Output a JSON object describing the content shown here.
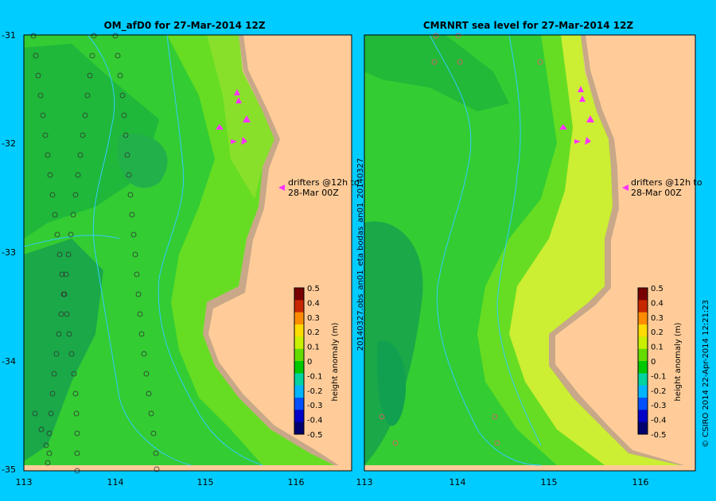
{
  "left_panel": {
    "title": "OM_afD0 for 27-Mar-2014 12Z",
    "y_ticks": [
      "-31",
      "-32",
      "-33",
      "-34",
      "-35"
    ],
    "x_ticks": [
      "113",
      "114",
      "115",
      "116"
    ],
    "drifter_note_line1": "drifters @12h to",
    "drifter_note_line2": "28-Mar 00Z"
  },
  "right_panel": {
    "title": "CMRNRT sea level  for 27-Mar-2014 12Z",
    "x_ticks": [
      "113",
      "114",
      "115",
      "116"
    ],
    "drifter_note_line1": "drifters @12h to",
    "drifter_note_line2": "28-Mar 00Z"
  },
  "colorbar": {
    "label": "height anomaly (m)",
    "ticks": [
      "0.5",
      "0.4",
      "0.3",
      "0.2",
      "0.1",
      "0",
      "-0.1",
      "-0.2",
      "-0.3",
      "-0.4",
      "-0.5"
    ],
    "colors": [
      "#00006e",
      "#0000c8",
      "#0050ff",
      "#00b4ff",
      "#00d2a0",
      "#00c800",
      "#64dc00",
      "#c8f000",
      "#ffdc00",
      "#ff8c00",
      "#c82800",
      "#780000"
    ]
  },
  "side_labels": {
    "vertical_info": "20140327.obs_an01_eta   bodas_an01_20140327",
    "copyright": "© CSIRO 2014   22-Apr-2014 12:21:23"
  },
  "colors": {
    "background": "#00ccff",
    "land": "#ffcc99",
    "shelf": "#c8a888",
    "drifter_arrow": "#ff33ff"
  }
}
